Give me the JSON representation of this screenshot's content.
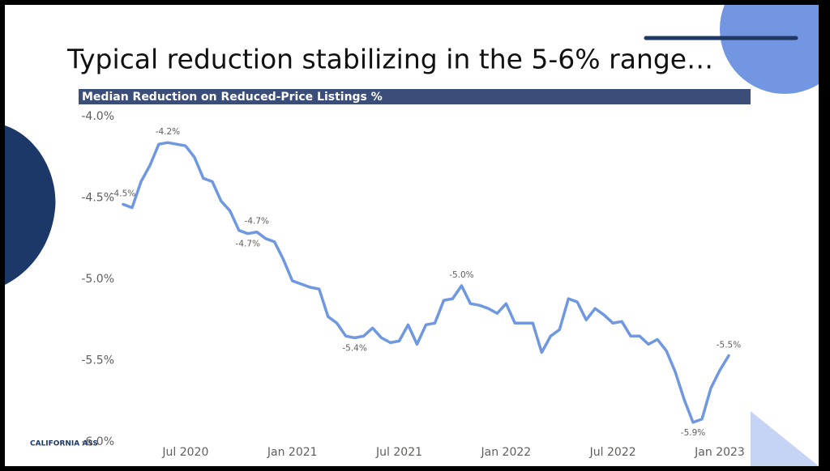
{
  "title": "Typical reduction stabilizing in the 5-6% range…",
  "footer": "CALIFORNIA ASS",
  "chart_data": {
    "type": "line",
    "title": "Median Reduction on Reduced-Price Listings %",
    "categories": [
      null,
      null,
      null,
      null,
      null,
      null,
      null,
      "Jul 2020",
      null,
      null,
      null,
      null,
      null,
      null,
      null,
      null,
      null,
      null,
      null,
      "Jan 2021",
      null,
      null,
      null,
      null,
      null,
      null,
      null,
      null,
      null,
      null,
      null,
      "Jul 2021",
      null,
      null,
      null,
      null,
      null,
      null,
      null,
      null,
      null,
      null,
      null,
      "Jan 2022",
      null,
      null,
      null,
      null,
      null,
      null,
      null,
      null,
      null,
      null,
      null,
      "Jul 2022",
      null,
      null,
      null,
      null,
      null,
      null,
      null,
      null,
      null,
      null,
      null,
      "Jan 2023",
      null
    ],
    "series": [
      {
        "name": "Median Reduction on Reduced-Price Listings %",
        "color": "#6f98e0",
        "values": [
          -4.54,
          -4.56,
          -4.4,
          -4.3,
          -4.17,
          -4.16,
          -4.17,
          -4.18,
          -4.25,
          -4.38,
          -4.4,
          -4.52,
          -4.58,
          -4.7,
          -4.72,
          -4.71,
          -4.75,
          -4.77,
          -4.88,
          -5.01,
          -5.03,
          -5.05,
          -5.06,
          -5.23,
          -5.27,
          -5.35,
          -5.36,
          -5.35,
          -5.3,
          -5.36,
          -5.39,
          -5.38,
          -5.28,
          -5.4,
          -5.28,
          -5.27,
          -5.13,
          -5.12,
          -5.04,
          -5.15,
          -5.16,
          -5.18,
          -5.21,
          -5.15,
          -5.27,
          -5.27,
          -5.27,
          -5.45,
          -5.35,
          -5.31,
          -5.12,
          -5.14,
          -5.25,
          -5.18,
          -5.22,
          -5.27,
          -5.26,
          -5.35,
          -5.35,
          -5.4,
          -5.37,
          -5.44,
          -5.57,
          -5.74,
          -5.88,
          -5.86,
          -5.67,
          -5.56,
          -5.47
        ],
        "value_labels": [
          "-4.5%",
          null,
          null,
          null,
          null,
          "-4.2%",
          null,
          null,
          null,
          null,
          null,
          null,
          null,
          null,
          "-4.7%",
          "-4.7%",
          null,
          null,
          null,
          null,
          null,
          null,
          null,
          null,
          null,
          null,
          "-5.4%",
          null,
          null,
          null,
          null,
          null,
          null,
          null,
          null,
          null,
          null,
          null,
          "-5.0%",
          null,
          null,
          null,
          null,
          null,
          null,
          null,
          null,
          null,
          null,
          null,
          null,
          null,
          null,
          null,
          null,
          null,
          null,
          null,
          null,
          null,
          null,
          null,
          null,
          null,
          "-5.9%",
          null,
          null,
          null,
          "-5.5%"
        ]
      }
    ],
    "ylim": [
      -6.0,
      -4.0
    ],
    "yticks": [
      {
        "value": -4.0,
        "label": "-4.0%"
      },
      {
        "value": -4.5,
        "label": "-4.5%"
      },
      {
        "value": -5.0,
        "label": "-5.0%"
      },
      {
        "value": -5.5,
        "label": "-5.5%"
      },
      {
        "value": -6.0,
        "label": "-6.0%"
      }
    ],
    "grid": false
  }
}
